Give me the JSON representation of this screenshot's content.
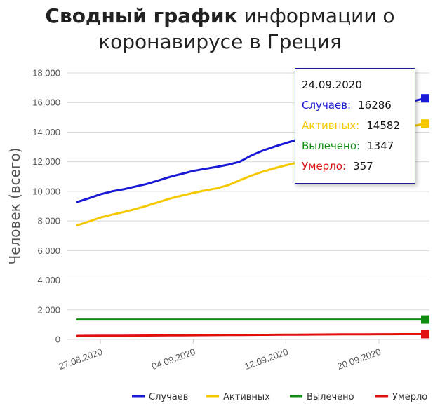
{
  "title": {
    "bold": "Сводный график",
    "rest_line1": " информации о",
    "line2": "коронавирусе в Греция"
  },
  "tooltip": {
    "date": "24.09.2020",
    "rows": [
      {
        "label": "Случаев:",
        "value": "16286",
        "color": "#1a1ad6"
      },
      {
        "label": "Активных:",
        "value": "14582",
        "color": "#f5c800"
      },
      {
        "label": "Вылечено:",
        "value": "1347",
        "color": "#138a13"
      },
      {
        "label": "Умерло:",
        "value": "357",
        "color": "#e01010"
      }
    ]
  },
  "chart_data": {
    "type": "line",
    "ylabel": "Человек (всего)",
    "xlabel": "",
    "ylim": [
      0,
      18000
    ],
    "yticks": [
      "0",
      "2,000",
      "4,000",
      "6,000",
      "8,000",
      "10,000",
      "12,000",
      "14,000",
      "16,000",
      "18,000"
    ],
    "xticks": [
      "27.08.2020",
      "04.09.2020",
      "12.09.2020",
      "20.09.2020"
    ],
    "x": [
      "25.08.2020",
      "26.08.2020",
      "27.08.2020",
      "28.08.2020",
      "29.08.2020",
      "30.08.2020",
      "31.08.2020",
      "01.09.2020",
      "02.09.2020",
      "03.09.2020",
      "04.09.2020",
      "05.09.2020",
      "06.09.2020",
      "07.09.2020",
      "08.09.2020",
      "09.09.2020",
      "10.09.2020",
      "11.09.2020",
      "12.09.2020",
      "13.09.2020",
      "14.09.2020",
      "15.09.2020",
      "16.09.2020",
      "17.09.2020",
      "18.09.2020",
      "19.09.2020",
      "20.09.2020",
      "21.09.2020",
      "22.09.2020",
      "23.09.2020",
      "24.09.2020"
    ],
    "series": [
      {
        "name": "Случаев",
        "color": "#1a1ad6",
        "values": [
          9280,
          9530,
          9800,
          10000,
          10140,
          10320,
          10500,
          10740,
          10980,
          11180,
          11380,
          11520,
          11650,
          11800,
          12000,
          12420,
          12750,
          13020,
          13270,
          13500,
          13780,
          14050,
          14350,
          14700,
          15000,
          15300,
          15550,
          15750,
          15950,
          16100,
          16286
        ]
      },
      {
        "name": "Активных",
        "color": "#f5c800",
        "values": [
          7700,
          7960,
          8230,
          8420,
          8600,
          8800,
          9020,
          9270,
          9510,
          9710,
          9890,
          10060,
          10200,
          10410,
          10750,
          11060,
          11330,
          11560,
          11760,
          11950,
          12200,
          12450,
          12700,
          12950,
          13250,
          13550,
          13800,
          14050,
          14250,
          14420,
          14582
        ]
      },
      {
        "name": "Вылечено",
        "color": "#138a13",
        "values": [
          1347,
          1347,
          1347,
          1347,
          1347,
          1347,
          1347,
          1347,
          1347,
          1347,
          1347,
          1347,
          1347,
          1347,
          1347,
          1347,
          1347,
          1347,
          1347,
          1347,
          1347,
          1347,
          1347,
          1347,
          1347,
          1347,
          1347,
          1347,
          1347,
          1347,
          1347
        ]
      },
      {
        "name": "Умерло",
        "color": "#e01010",
        "values": [
          235,
          240,
          244,
          248,
          253,
          258,
          262,
          266,
          270,
          274,
          279,
          283,
          288,
          293,
          298,
          303,
          308,
          312,
          317,
          322,
          326,
          331,
          335,
          339,
          343,
          346,
          349,
          352,
          354,
          356,
          357
        ]
      }
    ],
    "legend": "bottom-right",
    "grid": true
  }
}
